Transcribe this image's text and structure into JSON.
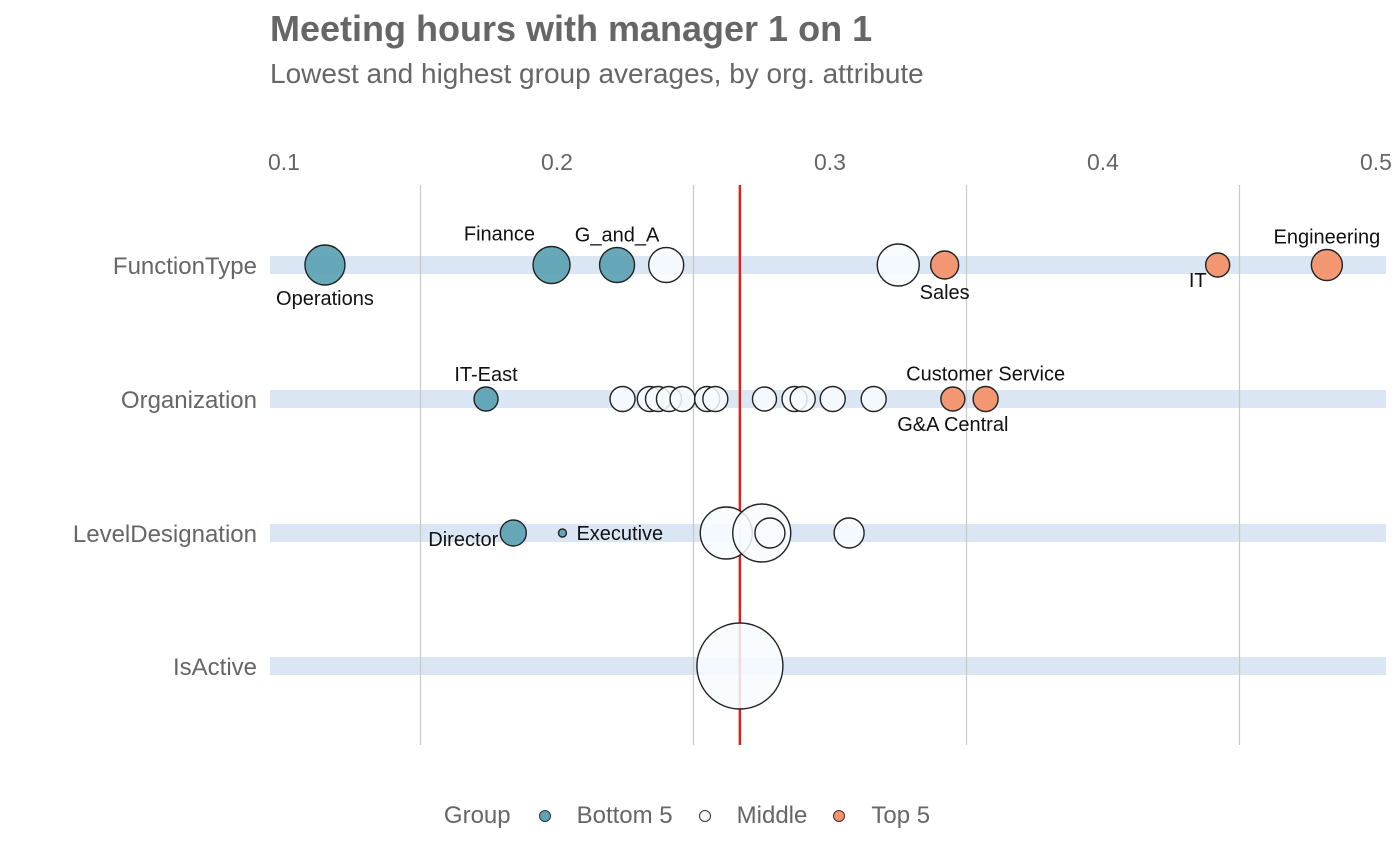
{
  "chart_data": {
    "type": "scatter",
    "title": "Meeting hours with manager 1 on 1",
    "subtitle": "Lowest and highest group averages, by org. attribute",
    "xlim": [
      0.1,
      0.5
    ],
    "x_ticks": [
      0.1,
      0.2,
      0.3,
      0.4,
      0.5
    ],
    "x_tick_labels": [
      "0.1",
      "0.2",
      "0.3",
      "0.4",
      "0.5"
    ],
    "x_gridlines": [
      0.15,
      0.25,
      0.35,
      0.45
    ],
    "reference_line": {
      "x": 0.267,
      "color": "#e0201b"
    },
    "categories": [
      "FunctionType",
      "Organization",
      "LevelDesignation",
      "IsActive"
    ],
    "legend": {
      "title": "Group",
      "position": "bottom",
      "entries": [
        {
          "label": "Bottom 5",
          "color": "#5fa3b5"
        },
        {
          "label": "Middle",
          "color": "#f7fbff"
        },
        {
          "label": "Top 5",
          "color": "#f4926c"
        }
      ]
    },
    "colors": {
      "Bottom 5": "#5fa3b5",
      "Middle": "#f7fbff",
      "Top 5": "#f4926c",
      "band": "#dbe6f5",
      "grid": "#c8c8c8"
    },
    "points": [
      {
        "category": "FunctionType",
        "x": 0.115,
        "size": 20,
        "group": "Bottom 5",
        "label": "Operations",
        "label_pos": "below"
      },
      {
        "category": "FunctionType",
        "x": 0.198,
        "size": 18.5,
        "group": "Bottom 5",
        "label": "Finance",
        "label_pos": "above-left"
      },
      {
        "category": "FunctionType",
        "x": 0.222,
        "size": 17.5,
        "group": "Bottom 5",
        "label": "G_and_A",
        "label_pos": "above"
      },
      {
        "category": "FunctionType",
        "x": 0.24,
        "size": 17.5,
        "group": "Middle",
        "label": "",
        "label_pos": ""
      },
      {
        "category": "FunctionType",
        "x": 0.325,
        "size": 21,
        "group": "Middle",
        "label": "",
        "label_pos": ""
      },
      {
        "category": "FunctionType",
        "x": 0.342,
        "size": 14,
        "group": "Top 5",
        "label": "Sales",
        "label_pos": "below"
      },
      {
        "category": "FunctionType",
        "x": 0.442,
        "size": 12,
        "group": "Top 5",
        "label": "IT",
        "label_pos": "below-left"
      },
      {
        "category": "FunctionType",
        "x": 0.482,
        "size": 15.5,
        "group": "Top 5",
        "label": "Engineering",
        "label_pos": "above"
      },
      {
        "category": "Organization",
        "x": 0.174,
        "size": 12,
        "group": "Bottom 5",
        "label": "IT-East",
        "label_pos": "above"
      },
      {
        "category": "Organization",
        "x": 0.224,
        "size": 12.5,
        "group": "Middle",
        "label": "",
        "label_pos": ""
      },
      {
        "category": "Organization",
        "x": 0.234,
        "size": 12.5,
        "group": "Middle",
        "label": "",
        "label_pos": ""
      },
      {
        "category": "Organization",
        "x": 0.237,
        "size": 12.5,
        "group": "Middle",
        "label": "",
        "label_pos": ""
      },
      {
        "category": "Organization",
        "x": 0.241,
        "size": 12.5,
        "group": "Middle",
        "label": "",
        "label_pos": ""
      },
      {
        "category": "Organization",
        "x": 0.246,
        "size": 12.5,
        "group": "Middle",
        "label": "",
        "label_pos": ""
      },
      {
        "category": "Organization",
        "x": 0.255,
        "size": 12.5,
        "group": "Middle",
        "label": "",
        "label_pos": ""
      },
      {
        "category": "Organization",
        "x": 0.258,
        "size": 12.5,
        "group": "Middle",
        "label": "",
        "label_pos": ""
      },
      {
        "category": "Organization",
        "x": 0.276,
        "size": 12,
        "group": "Middle",
        "label": "",
        "label_pos": ""
      },
      {
        "category": "Organization",
        "x": 0.287,
        "size": 12.5,
        "group": "Middle",
        "label": "",
        "label_pos": ""
      },
      {
        "category": "Organization",
        "x": 0.29,
        "size": 12.5,
        "group": "Middle",
        "label": "",
        "label_pos": ""
      },
      {
        "category": "Organization",
        "x": 0.301,
        "size": 12.5,
        "group": "Middle",
        "label": "",
        "label_pos": ""
      },
      {
        "category": "Organization",
        "x": 0.316,
        "size": 12.5,
        "group": "Middle",
        "label": "",
        "label_pos": ""
      },
      {
        "category": "Organization",
        "x": 0.345,
        "size": 12,
        "group": "Top 5",
        "label": "G&A Central",
        "label_pos": "below"
      },
      {
        "category": "Organization",
        "x": 0.357,
        "size": 12.5,
        "group": "Top 5",
        "label": "Customer Service",
        "label_pos": "above"
      },
      {
        "category": "LevelDesignation",
        "x": 0.184,
        "size": 13,
        "group": "Bottom 5",
        "label": "Director",
        "label_pos": "left"
      },
      {
        "category": "LevelDesignation",
        "x": 0.202,
        "size": 4,
        "group": "Bottom 5",
        "label": "Executive",
        "label_pos": "right"
      },
      {
        "category": "LevelDesignation",
        "x": 0.262,
        "size": 26,
        "group": "Middle",
        "label": "",
        "label_pos": ""
      },
      {
        "category": "LevelDesignation",
        "x": 0.275,
        "size": 29,
        "group": "Middle",
        "label": "",
        "label_pos": ""
      },
      {
        "category": "LevelDesignation",
        "x": 0.278,
        "size": 15,
        "group": "Middle",
        "label": "",
        "label_pos": ""
      },
      {
        "category": "LevelDesignation",
        "x": 0.307,
        "size": 15,
        "group": "Middle",
        "label": "",
        "label_pos": ""
      },
      {
        "category": "IsActive",
        "x": 0.267,
        "size": 43,
        "group": "Middle",
        "label": "",
        "label_pos": ""
      }
    ]
  }
}
